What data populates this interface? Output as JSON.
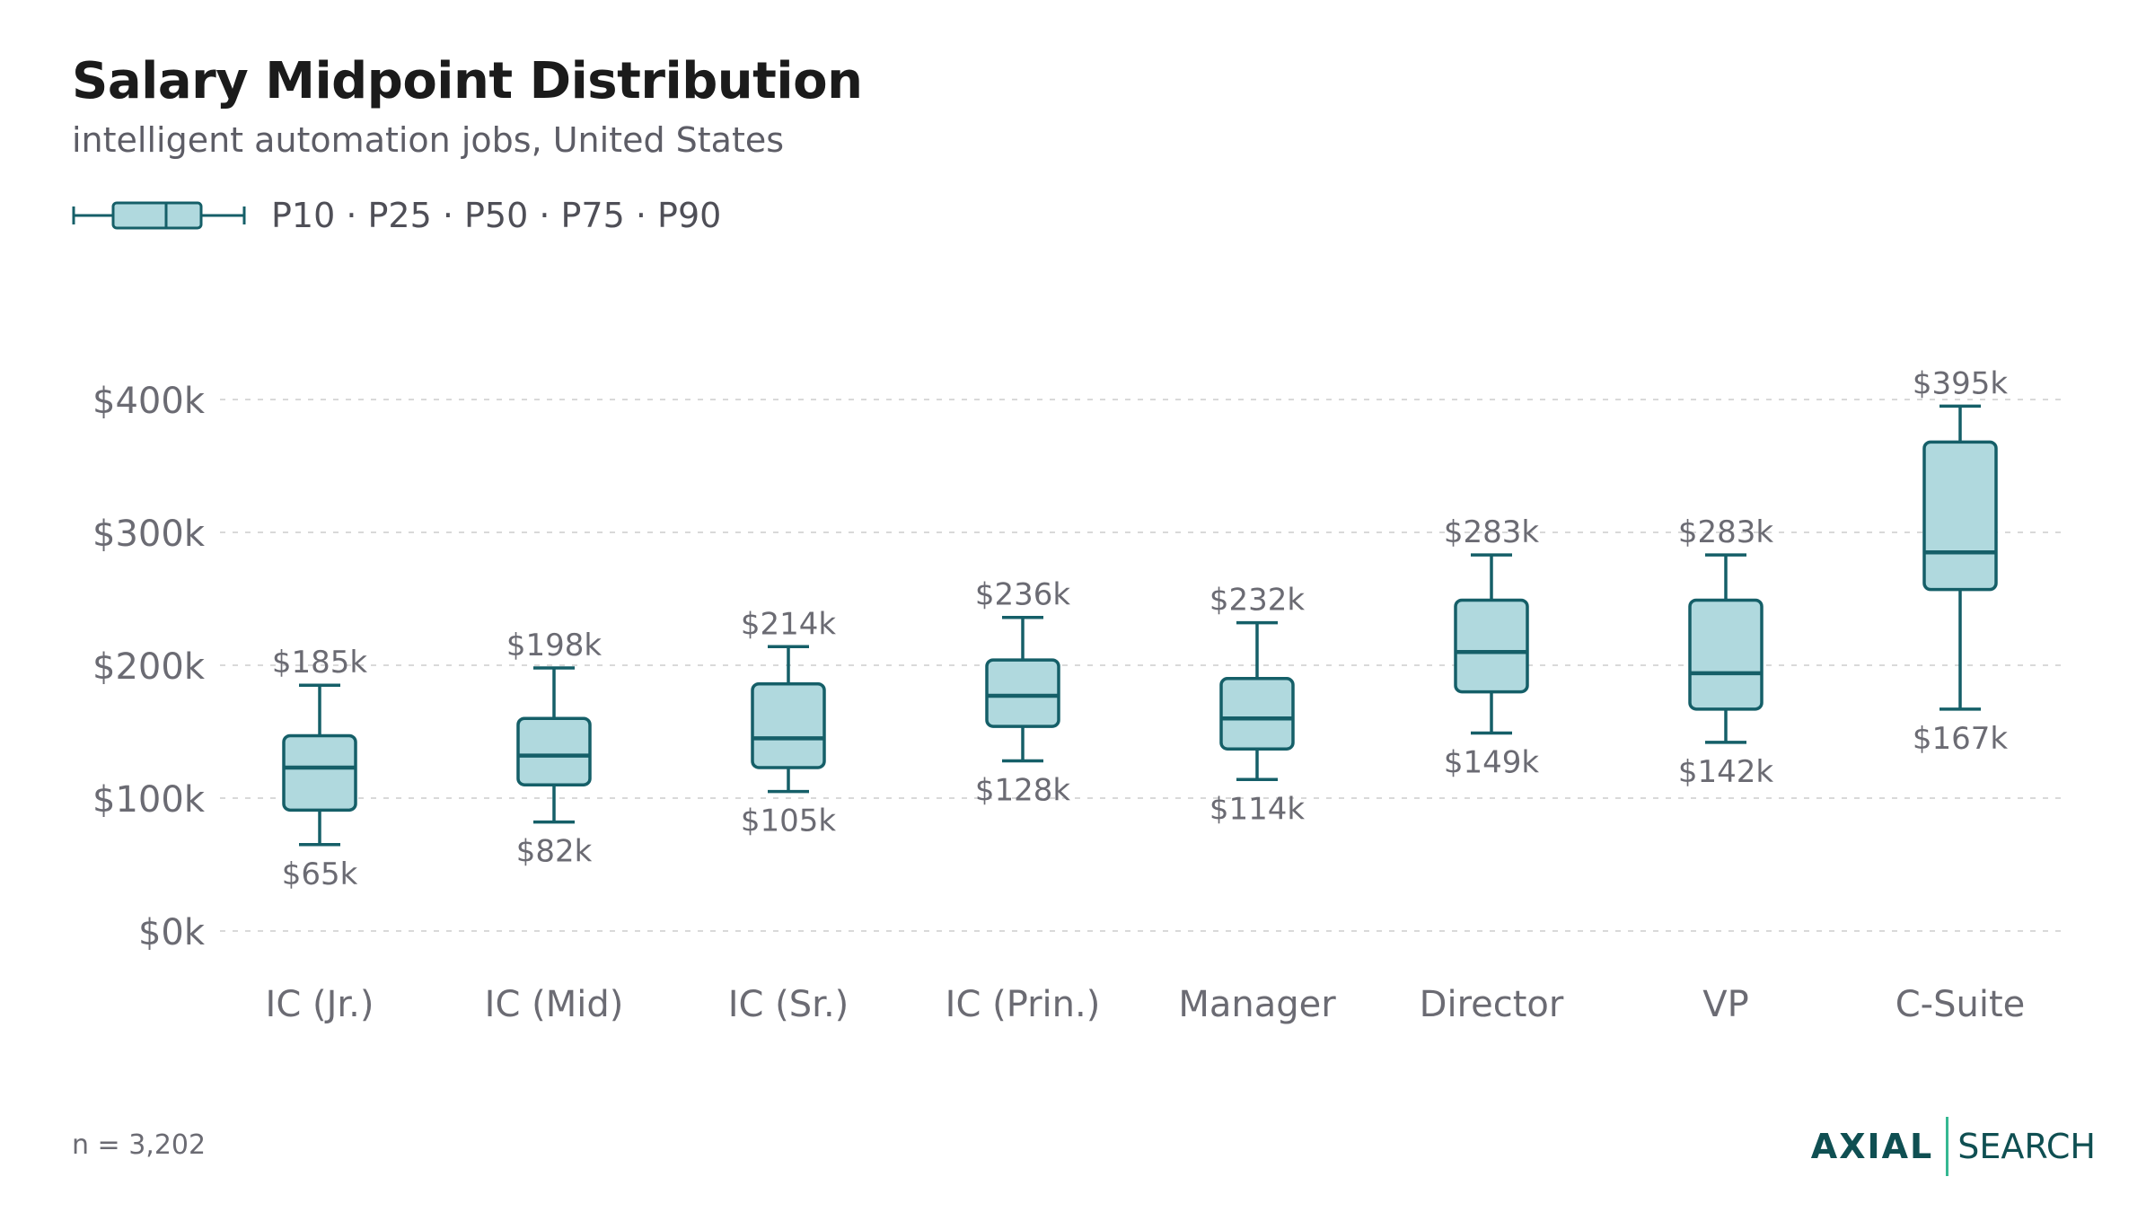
{
  "header": {
    "title": "Salary Midpoint Distribution",
    "subtitle": "intelligent automation jobs, United States"
  },
  "legend": {
    "label": "P10 · P25 · P50 · P75 · P90"
  },
  "footer": {
    "sample_size": "n = 3,202",
    "brand_primary": "AXIAL",
    "brand_secondary": "SEARCH"
  },
  "colors": {
    "box_fill": "#b0d9de",
    "box_stroke": "#155f68",
    "grid": "#d9d9d9",
    "label": "#6b6b73",
    "brand": "#0f4f52",
    "brand_accent": "#35b892"
  },
  "chart_data": {
    "type": "boxplot",
    "title": "Salary Midpoint Distribution",
    "subtitle": "intelligent automation jobs, United States",
    "ylim": [
      0,
      420
    ],
    "y_ticks": [
      0,
      100,
      200,
      300,
      400
    ],
    "y_tick_labels": [
      "$0k",
      "$100k",
      "$200k",
      "$300k",
      "$400k"
    ],
    "grid": true,
    "categories": [
      "IC (Jr.)",
      "IC (Mid)",
      "IC (Sr.)",
      "IC (Prin.)",
      "Manager",
      "Director",
      "VP",
      "C-Suite"
    ],
    "series": [
      {
        "p10": 65,
        "p25": 91,
        "p50": 123,
        "p75": 147,
        "p90": 185,
        "p10_label": "$65k",
        "p90_label": "$185k"
      },
      {
        "p10": 82,
        "p25": 110,
        "p50": 132,
        "p75": 160,
        "p90": 198,
        "p10_label": "$82k",
        "p90_label": "$198k"
      },
      {
        "p10": 105,
        "p25": 123,
        "p50": 145,
        "p75": 186,
        "p90": 214,
        "p10_label": "$105k",
        "p90_label": "$214k"
      },
      {
        "p10": 128,
        "p25": 154,
        "p50": 177,
        "p75": 204,
        "p90": 236,
        "p10_label": "$128k",
        "p90_label": "$236k"
      },
      {
        "p10": 114,
        "p25": 137,
        "p50": 160,
        "p75": 190,
        "p90": 232,
        "p10_label": "$114k",
        "p90_label": "$232k"
      },
      {
        "p10": 149,
        "p25": 180,
        "p50": 210,
        "p75": 249,
        "p90": 283,
        "p10_label": "$149k",
        "p90_label": "$283k"
      },
      {
        "p10": 142,
        "p25": 167,
        "p50": 194,
        "p75": 249,
        "p90": 283,
        "p10_label": "$142k",
        "p90_label": "$283k"
      },
      {
        "p10": 167,
        "p25": 257,
        "p50": 285,
        "p75": 368,
        "p90": 395,
        "p10_label": "$167k",
        "p90_label": "$395k"
      }
    ]
  }
}
